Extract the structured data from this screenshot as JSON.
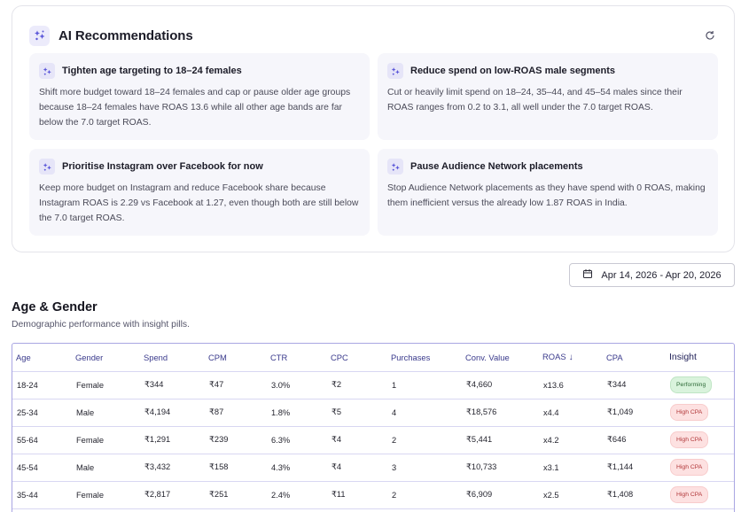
{
  "ai_recommendations": {
    "title": "AI Recommendations",
    "items": [
      {
        "title": "Tighten age targeting to 18–24 females",
        "body": "Shift more budget toward 18–24 females and cap or pause older age groups because 18–24 females have ROAS 13.6 while all other age bands are far below the 7.0 target ROAS."
      },
      {
        "title": "Reduce spend on low-ROAS male segments",
        "body": "Cut or heavily limit spend on 18–24, 35–44, and 45–54 males since their ROAS ranges from 0.2 to 3.1, all well under the 7.0 target ROAS."
      },
      {
        "title": "Prioritise Instagram over Facebook for now",
        "body": "Keep more budget on Instagram and reduce Facebook share because Instagram ROAS is 2.29 vs Facebook at 1.27, even though both are still below the 7.0 target ROAS."
      },
      {
        "title": "Pause Audience Network placements",
        "body": "Stop Audience Network placements as they have spend with 0 ROAS, making them inefficient versus the already low 1.87 ROAS in India."
      }
    ]
  },
  "date_range": {
    "label": "Apr 14, 2026 - Apr 20, 2026"
  },
  "section": {
    "title": "Age & Gender",
    "subtitle": "Demographic performance with insight pills."
  },
  "table": {
    "headers": {
      "age": "Age",
      "gender": "Gender",
      "spend": "Spend",
      "cpm": "CPM",
      "ctr": "CTR",
      "cpc": "CPC",
      "purchases": "Purchases",
      "conv_value": "Conv. Value",
      "roas": "ROAS",
      "cpa": "CPA",
      "insight": "Insight"
    },
    "rows": [
      {
        "age": "18-24",
        "gender": "Female",
        "spend": "₹344",
        "cpm": "₹47",
        "ctr": "3.0%",
        "cpc": "₹2",
        "purchases": "1",
        "conv_value": "₹4,660",
        "roas": "x13.6",
        "cpa": "₹344",
        "insight": "Performing",
        "insight_type": "good"
      },
      {
        "age": "25-34",
        "gender": "Male",
        "spend": "₹4,194",
        "cpm": "₹87",
        "ctr": "1.8%",
        "cpc": "₹5",
        "purchases": "4",
        "conv_value": "₹18,576",
        "roas": "x4.4",
        "cpa": "₹1,049",
        "insight": "High CPA",
        "insight_type": "bad"
      },
      {
        "age": "55-64",
        "gender": "Female",
        "spend": "₹1,291",
        "cpm": "₹239",
        "ctr": "6.3%",
        "cpc": "₹4",
        "purchases": "2",
        "conv_value": "₹5,441",
        "roas": "x4.2",
        "cpa": "₹646",
        "insight": "High CPA",
        "insight_type": "bad"
      },
      {
        "age": "45-54",
        "gender": "Male",
        "spend": "₹3,432",
        "cpm": "₹158",
        "ctr": "4.3%",
        "cpc": "₹4",
        "purchases": "3",
        "conv_value": "₹10,733",
        "roas": "x3.1",
        "cpa": "₹1,144",
        "insight": "High CPA",
        "insight_type": "bad"
      },
      {
        "age": "35-44",
        "gender": "Female",
        "spend": "₹2,817",
        "cpm": "₹251",
        "ctr": "2.4%",
        "cpc": "₹11",
        "purchases": "2",
        "conv_value": "₹6,909",
        "roas": "x2.5",
        "cpa": "₹1,408",
        "insight": "High CPA",
        "insight_type": "bad"
      }
    ]
  },
  "icons": {
    "ai": "sparkles-icon",
    "refresh": "refresh-icon",
    "calendar": "calendar-icon",
    "sort": "sort-descending-icon"
  },
  "colors": {
    "accent": "#5b57d9",
    "pill_good_bg": "#d9f3dc",
    "pill_bad_bg": "#fde1e1"
  }
}
